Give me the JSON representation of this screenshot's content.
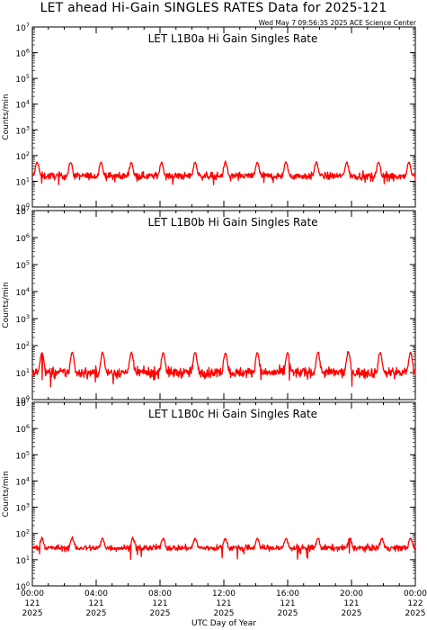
{
  "header": {
    "title": "LET ahead Hi-Gain SINGLES RATES Data for 2025-121",
    "timestamp": "Wed May  7 09:56:35 2025 ACE Science Center"
  },
  "colors": {
    "series": "#ff0000",
    "panel_label": "#0000ff",
    "axis": "#000000"
  },
  "chart_data": [
    {
      "type": "line",
      "title": "LET L1B0a Hi Gain Singles Rate",
      "ylabel": "Counts/min",
      "yscale": "log",
      "ylim": [
        1,
        10000000
      ],
      "ytick_exponents": [
        "0",
        "1",
        "2",
        "3",
        "4",
        "5",
        "6",
        "7"
      ],
      "xlim": [
        "2025-121 00:00",
        "2025-122 00:00"
      ],
      "series": [
        {
          "baseline": 16,
          "noise": 0.55,
          "spike_peak": 55,
          "spike_hours": [
            0.3,
            2.4,
            4.3,
            6.2,
            8.1,
            10.2,
            12.1,
            14.1,
            15.9,
            17.8,
            19.7,
            21.7,
            23.6
          ],
          "dip_min": 7
        }
      ]
    },
    {
      "type": "line",
      "title": "LET L1B0b Hi Gain Singles Rate",
      "ylabel": "Counts/min",
      "yscale": "log",
      "ylim": [
        1,
        10000000
      ],
      "ytick_exponents": [
        "0",
        "1",
        "2",
        "3",
        "4",
        "5",
        "6",
        "7"
      ],
      "xlim": [
        "2025-121 00:00",
        "2025-122 00:00"
      ],
      "series": [
        {
          "baseline": 10,
          "noise": 0.75,
          "spike_peak": 55,
          "spike_hours": [
            0.6,
            2.5,
            4.4,
            6.2,
            8.2,
            10.2,
            12.1,
            14.1,
            16.0,
            17.9,
            19.8,
            21.8,
            23.7
          ],
          "dip_min": 2
        }
      ]
    },
    {
      "type": "line",
      "title": "LET L1B0c Hi Gain Singles Rate",
      "ylabel": "Counts/min",
      "yscale": "log",
      "ylim": [
        1,
        10000000
      ],
      "ytick_exponents": [
        "0",
        "1",
        "2",
        "3",
        "4",
        "5",
        "6",
        "7"
      ],
      "xlim": [
        "2025-121 00:00",
        "2025-122 00:00"
      ],
      "series": [
        {
          "baseline": 28,
          "noise": 0.45,
          "spike_peak": 65,
          "spike_hours": [
            0.6,
            2.5,
            4.4,
            6.3,
            8.2,
            10.2,
            12.1,
            14.1,
            15.9,
            17.9,
            19.9,
            21.9,
            23.7
          ],
          "dip_min": 10
        }
      ]
    }
  ],
  "x_axis": {
    "label": "UTC Day of Year",
    "ticks": [
      {
        "hour": 0,
        "time": "00:00",
        "day": "121",
        "year": "2025"
      },
      {
        "hour": 4,
        "time": "04:00",
        "day": "121",
        "year": "2025"
      },
      {
        "hour": 8,
        "time": "08:00",
        "day": "121",
        "year": "2025"
      },
      {
        "hour": 12,
        "time": "12:00",
        "day": "121",
        "year": "2025"
      },
      {
        "hour": 16,
        "time": "16:00",
        "day": "121",
        "year": "2025"
      },
      {
        "hour": 20,
        "time": "20:00",
        "day": "121",
        "year": "2025"
      },
      {
        "hour": 24,
        "time": "00:00",
        "day": "122",
        "year": "2025"
      }
    ]
  }
}
